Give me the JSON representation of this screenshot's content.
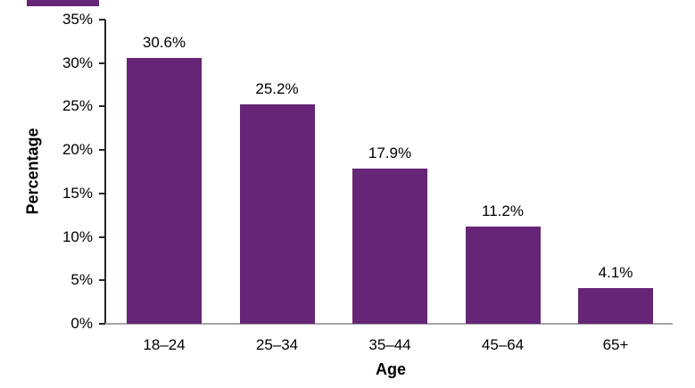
{
  "chart_data": {
    "type": "bar",
    "title": "",
    "categories": [
      "18–24",
      "25–34",
      "35–44",
      "45–64",
      "65+"
    ],
    "values": [
      30.6,
      25.2,
      17.9,
      11.2,
      4.1
    ],
    "value_labels": [
      "30.6%",
      "25.2%",
      "17.9%",
      "11.2%",
      "4.1%"
    ],
    "xlabel": "Age",
    "ylabel": "Percentage",
    "y_ticks": [
      0,
      5,
      10,
      15,
      20,
      25,
      30,
      35
    ],
    "y_tick_labels": [
      "0%",
      "5%",
      "10%",
      "15%",
      "20%",
      "25%",
      "30%",
      "35%"
    ],
    "ylim": [
      0,
      35
    ],
    "grid": false,
    "legend": false,
    "bar_color": "#662577",
    "baseline_color": "#a6a6a6",
    "axis_color": "#262626",
    "text_color": "#000000"
  },
  "decorations": {
    "top_strip_color": "#662577"
  }
}
